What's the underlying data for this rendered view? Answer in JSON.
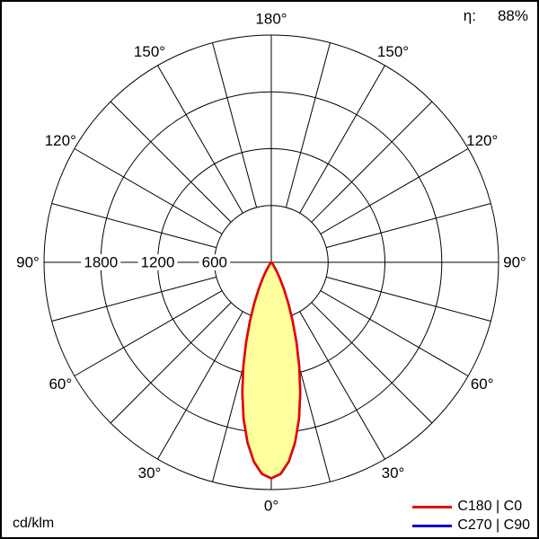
{
  "meta": {
    "efficiency_label": "η:",
    "efficiency_value": "88%",
    "unit_label": "cd/klm"
  },
  "legend": [
    {
      "label": "C180 | C0",
      "color": "#e60000"
    },
    {
      "label": "C270 | C90",
      "color": "#0000cc"
    }
  ],
  "chart_data": {
    "type": "polar-intensity",
    "unit": "cd/klm",
    "efficiency_percent": 88,
    "angle_labels_deg": [
      0,
      30,
      60,
      90,
      120,
      150,
      180
    ],
    "grid_angle_step_deg": 15,
    "radial_ticks": [
      600,
      1200,
      1800
    ],
    "radial_max": 2400,
    "series": [
      {
        "name": "C180 | C0",
        "color": "#e60000",
        "fill": "#ffff9e",
        "gamma_deg": [
          0,
          2.5,
          5,
          7.5,
          10,
          12.5,
          15,
          17.5,
          20,
          22.5,
          25,
          27.5,
          30,
          32.5,
          35,
          37.5,
          40,
          42.5,
          45
        ],
        "values": [
          2280,
          2237,
          2113,
          1920,
          1680,
          1411,
          1140,
          884,
          655,
          468,
          320,
          207,
          130,
          75,
          42,
          22,
          10,
          5,
          0
        ]
      },
      {
        "name": "C270 | C90",
        "color": "#0000cc",
        "fill": "#ffff9e",
        "gamma_deg": [
          0,
          2.5,
          5,
          7.5,
          10,
          12.5,
          15,
          17.5,
          20,
          22.5,
          25,
          27.5,
          30,
          32.5,
          35,
          37.5,
          40,
          42.5,
          45
        ],
        "values": [
          2280,
          2237,
          2113,
          1920,
          1680,
          1411,
          1140,
          884,
          655,
          468,
          320,
          207,
          130,
          75,
          42,
          22,
          10,
          5,
          0
        ]
      }
    ]
  }
}
